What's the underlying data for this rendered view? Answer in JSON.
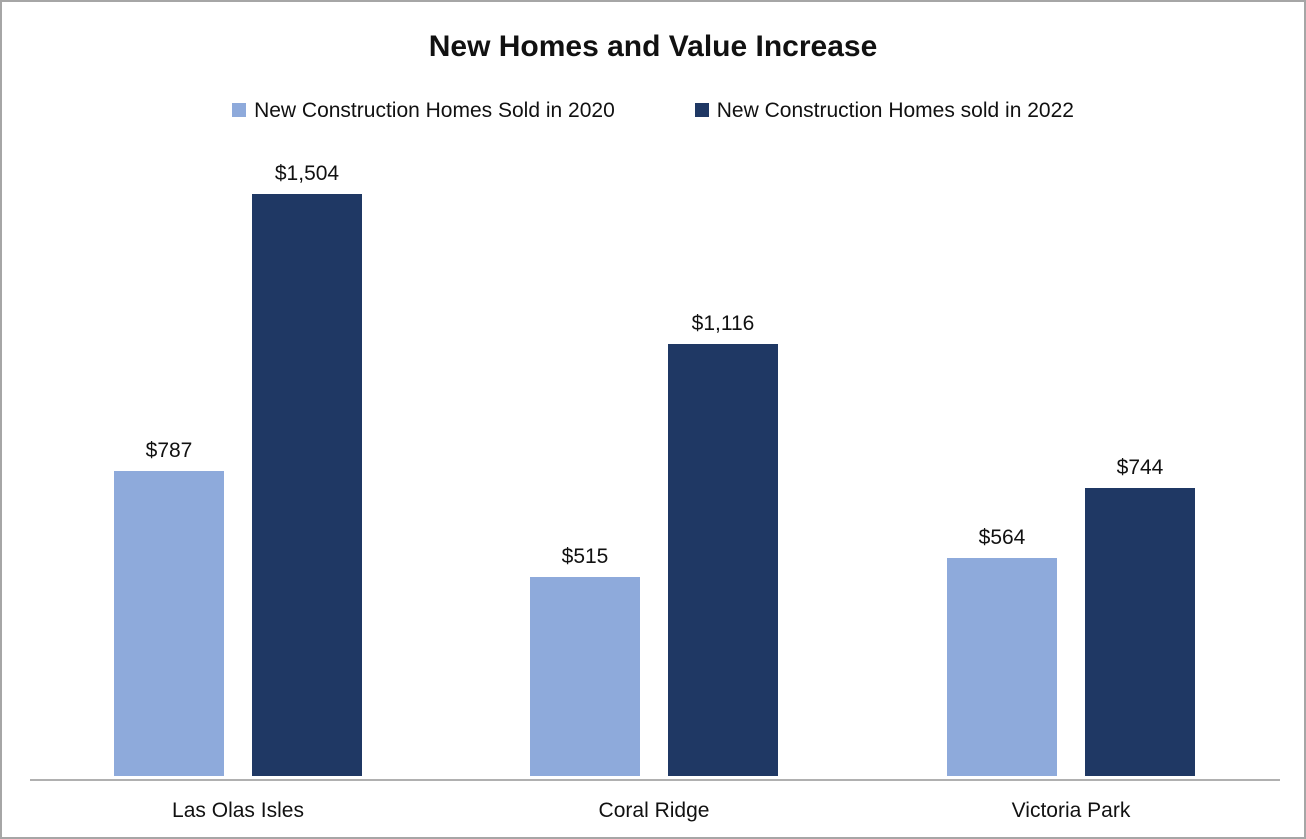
{
  "chart_data": {
    "type": "bar",
    "title": "New Homes and Value Increase",
    "categories": [
      "Las Olas Isles",
      "Coral Ridge",
      "Victoria Park"
    ],
    "series": [
      {
        "name": "New Construction Homes Sold in 2020",
        "color": "#8EAADB",
        "values": [
          787,
          515,
          564
        ],
        "value_labels": [
          "$787",
          "$515",
          "$564"
        ]
      },
      {
        "name": "New Construction Homes sold in 2022",
        "color": "#1F3864",
        "values": [
          1504,
          1116,
          744
        ],
        "value_labels": [
          "$1,504",
          "$1,116",
          "$744"
        ]
      }
    ],
    "xlabel": "",
    "ylabel": "",
    "ylim": [
      0,
      1650
    ],
    "grid": false,
    "legend_position": "top",
    "data_labels": true,
    "axis_line_color": "#B0B0B0"
  },
  "frame": {
    "background": "#FFFFFF",
    "border_color": "#A6A6A6"
  }
}
